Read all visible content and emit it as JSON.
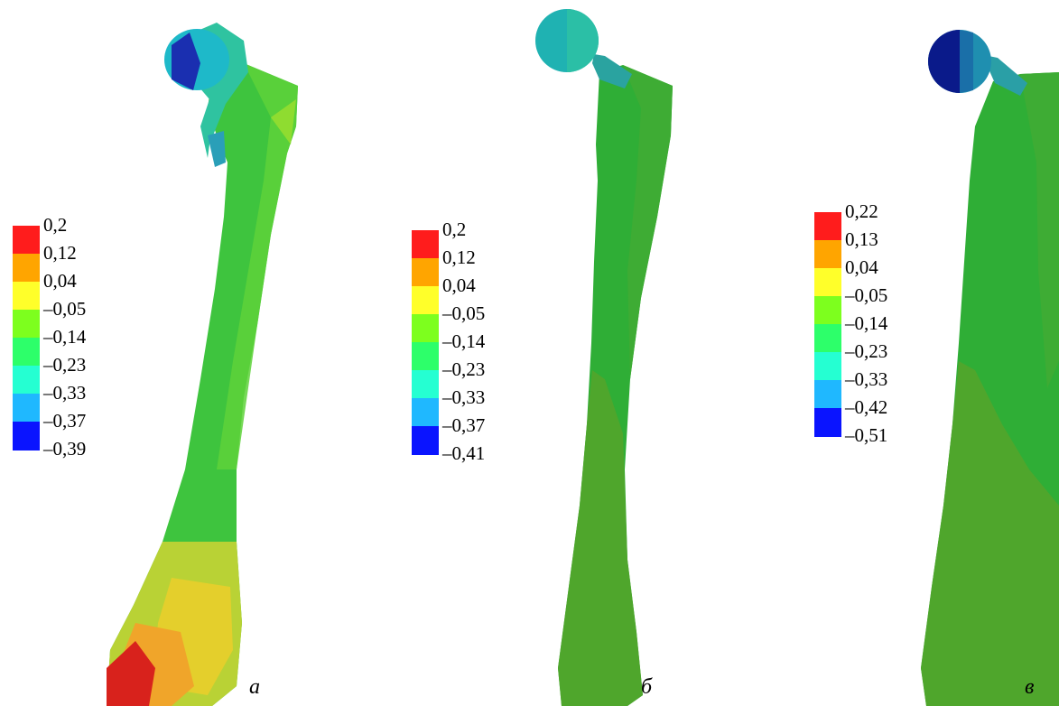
{
  "palette": [
    "#ff1c1c",
    "#ffa500",
    "#ffff2a",
    "#7dff1e",
    "#2dff6a",
    "#25ffd2",
    "#1fb8ff",
    "#0a14ff"
  ],
  "panels": [
    {
      "letter": "а",
      "legend_labels": [
        "0,2",
        "0,12",
        "0,04",
        "–0,05",
        "–0,14",
        "–0,23",
        "–0,33",
        "–0,37",
        "–0,39"
      ]
    },
    {
      "letter": "б",
      "legend_labels": [
        "0,2",
        "0,12",
        "0,04",
        "–0,05",
        "–0,14",
        "–0,23",
        "–0,33",
        "–0,37",
        "–0,41"
      ]
    },
    {
      "letter": "в",
      "legend_labels": [
        "0,22",
        "0,13",
        "0,04",
        "–0,05",
        "–0,14",
        "–0,23",
        "–0,33",
        "–0,42",
        "–0,51"
      ]
    }
  ]
}
